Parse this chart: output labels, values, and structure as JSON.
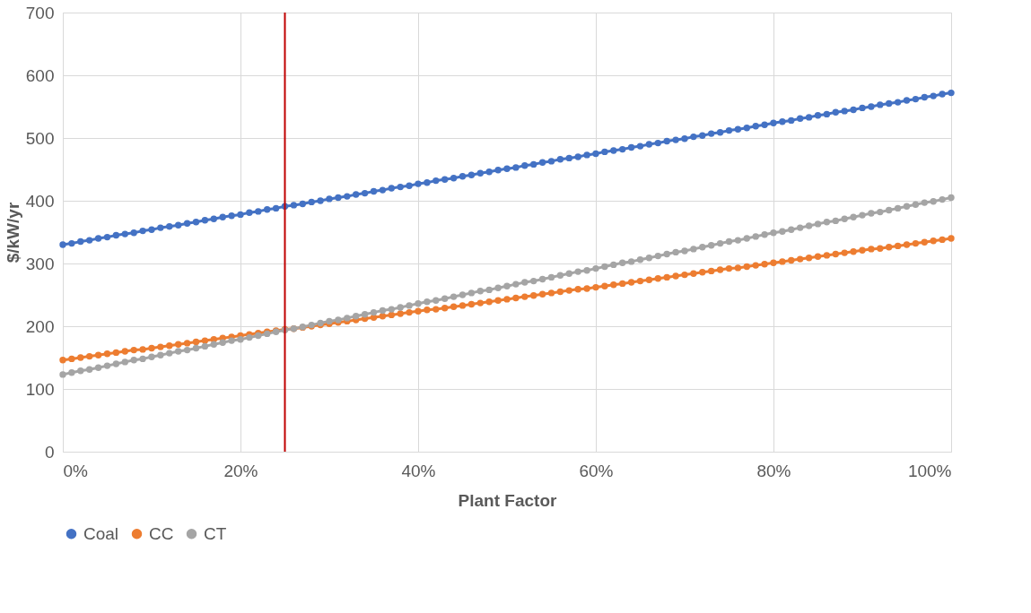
{
  "chart_data": {
    "type": "line",
    "xlabel": "Plant Factor",
    "ylabel": "$/kW/yr",
    "x": [
      0,
      0.01,
      0.02,
      0.03,
      0.04,
      0.05,
      0.06,
      0.07,
      0.08,
      0.09,
      0.1,
      0.11,
      0.12,
      0.13,
      0.14,
      0.15,
      0.16,
      0.17,
      0.18,
      0.19,
      0.2,
      0.21,
      0.22,
      0.23,
      0.24,
      0.25,
      0.26,
      0.27,
      0.28,
      0.29,
      0.3,
      0.31,
      0.32,
      0.33,
      0.34,
      0.35,
      0.36,
      0.37,
      0.38,
      0.39,
      0.4,
      0.41,
      0.42,
      0.43,
      0.44,
      0.45,
      0.46,
      0.47,
      0.48,
      0.49,
      0.5,
      0.51,
      0.52,
      0.53,
      0.54,
      0.55,
      0.56,
      0.57,
      0.58,
      0.59,
      0.6,
      0.61,
      0.62,
      0.63,
      0.64,
      0.65,
      0.66,
      0.67,
      0.68,
      0.69,
      0.7,
      0.71,
      0.72,
      0.73,
      0.74,
      0.75,
      0.76,
      0.77,
      0.78,
      0.79,
      0.8,
      0.81,
      0.82,
      0.83,
      0.84,
      0.85,
      0.86,
      0.87,
      0.88,
      0.89,
      0.9,
      0.91,
      0.92,
      0.93,
      0.94,
      0.95,
      0.96,
      0.97,
      0.98,
      0.99,
      1
    ],
    "series": [
      {
        "name": "Coal",
        "color": "#4472c4",
        "values": [
          330,
          332,
          335,
          337,
          340,
          342,
          345,
          347,
          349,
          352,
          354,
          357,
          359,
          361,
          364,
          366,
          369,
          371,
          374,
          376,
          378,
          381,
          383,
          386,
          388,
          391,
          393,
          395,
          398,
          400,
          403,
          405,
          407,
          410,
          412,
          415,
          417,
          420,
          422,
          424,
          427,
          429,
          432,
          434,
          436,
          439,
          441,
          444,
          446,
          449,
          451,
          453,
          456,
          458,
          461,
          463,
          466,
          468,
          470,
          473,
          475,
          478,
          480,
          482,
          485,
          487,
          490,
          492,
          495,
          497,
          499,
          502,
          504,
          507,
          509,
          512,
          514,
          516,
          519,
          521,
          524,
          526,
          528,
          531,
          533,
          536,
          538,
          541,
          543,
          545,
          548,
          550,
          553,
          555,
          557,
          560,
          562,
          565,
          567,
          570,
          572
        ]
      },
      {
        "name": "CC",
        "color": "#ed7d31",
        "values": [
          146,
          148,
          150,
          152,
          154,
          156,
          158,
          160,
          162,
          163,
          165,
          167,
          169,
          171,
          173,
          175,
          177,
          179,
          181,
          183,
          185,
          187,
          189,
          191,
          193,
          195,
          196,
          198,
          200,
          202,
          204,
          206,
          208,
          210,
          212,
          214,
          216,
          218,
          220,
          222,
          224,
          226,
          227,
          229,
          231,
          233,
          235,
          237,
          239,
          241,
          243,
          245,
          247,
          249,
          251,
          253,
          255,
          257,
          259,
          260,
          262,
          264,
          266,
          268,
          270,
          272,
          274,
          276,
          278,
          280,
          282,
          284,
          286,
          288,
          290,
          292,
          293,
          295,
          297,
          299,
          301,
          303,
          305,
          307,
          309,
          311,
          313,
          315,
          317,
          319,
          321,
          323,
          324,
          326,
          328,
          330,
          332,
          334,
          336,
          338,
          340
        ]
      },
      {
        "name": "CT",
        "color": "#a5a5a5",
        "values": [
          123,
          126,
          129,
          131,
          134,
          137,
          140,
          143,
          146,
          148,
          151,
          154,
          157,
          160,
          162,
          165,
          168,
          171,
          174,
          177,
          179,
          182,
          185,
          188,
          191,
          194,
          196,
          199,
          202,
          205,
          208,
          210,
          213,
          216,
          219,
          222,
          225,
          227,
          230,
          233,
          236,
          239,
          241,
          244,
          247,
          250,
          253,
          256,
          258,
          261,
          264,
          267,
          270,
          272,
          275,
          278,
          281,
          284,
          287,
          289,
          292,
          295,
          298,
          301,
          303,
          306,
          309,
          312,
          315,
          318,
          320,
          323,
          326,
          329,
          332,
          335,
          337,
          340,
          343,
          346,
          349,
          351,
          354,
          357,
          360,
          363,
          366,
          368,
          371,
          374,
          377,
          380,
          382,
          385,
          388,
          391,
          394,
          397,
          399,
          402,
          405
        ]
      }
    ],
    "xlim": [
      0,
      1
    ],
    "xticks": [
      {
        "value": 0,
        "label": "0%"
      },
      {
        "value": 0.2,
        "label": "20%"
      },
      {
        "value": 0.4,
        "label": "40%"
      },
      {
        "value": 0.6,
        "label": "60%"
      },
      {
        "value": 0.8,
        "label": "80%"
      },
      {
        "value": 1,
        "label": "100%"
      }
    ],
    "ylim": [
      0,
      700
    ],
    "yticks": [
      0,
      100,
      200,
      300,
      400,
      500,
      600,
      700
    ],
    "grid": true,
    "legend": "bottom",
    "marker": "circle",
    "ref_lines": [
      {
        "axis": "x",
        "value": 0.25,
        "color": "#c00000"
      }
    ]
  }
}
